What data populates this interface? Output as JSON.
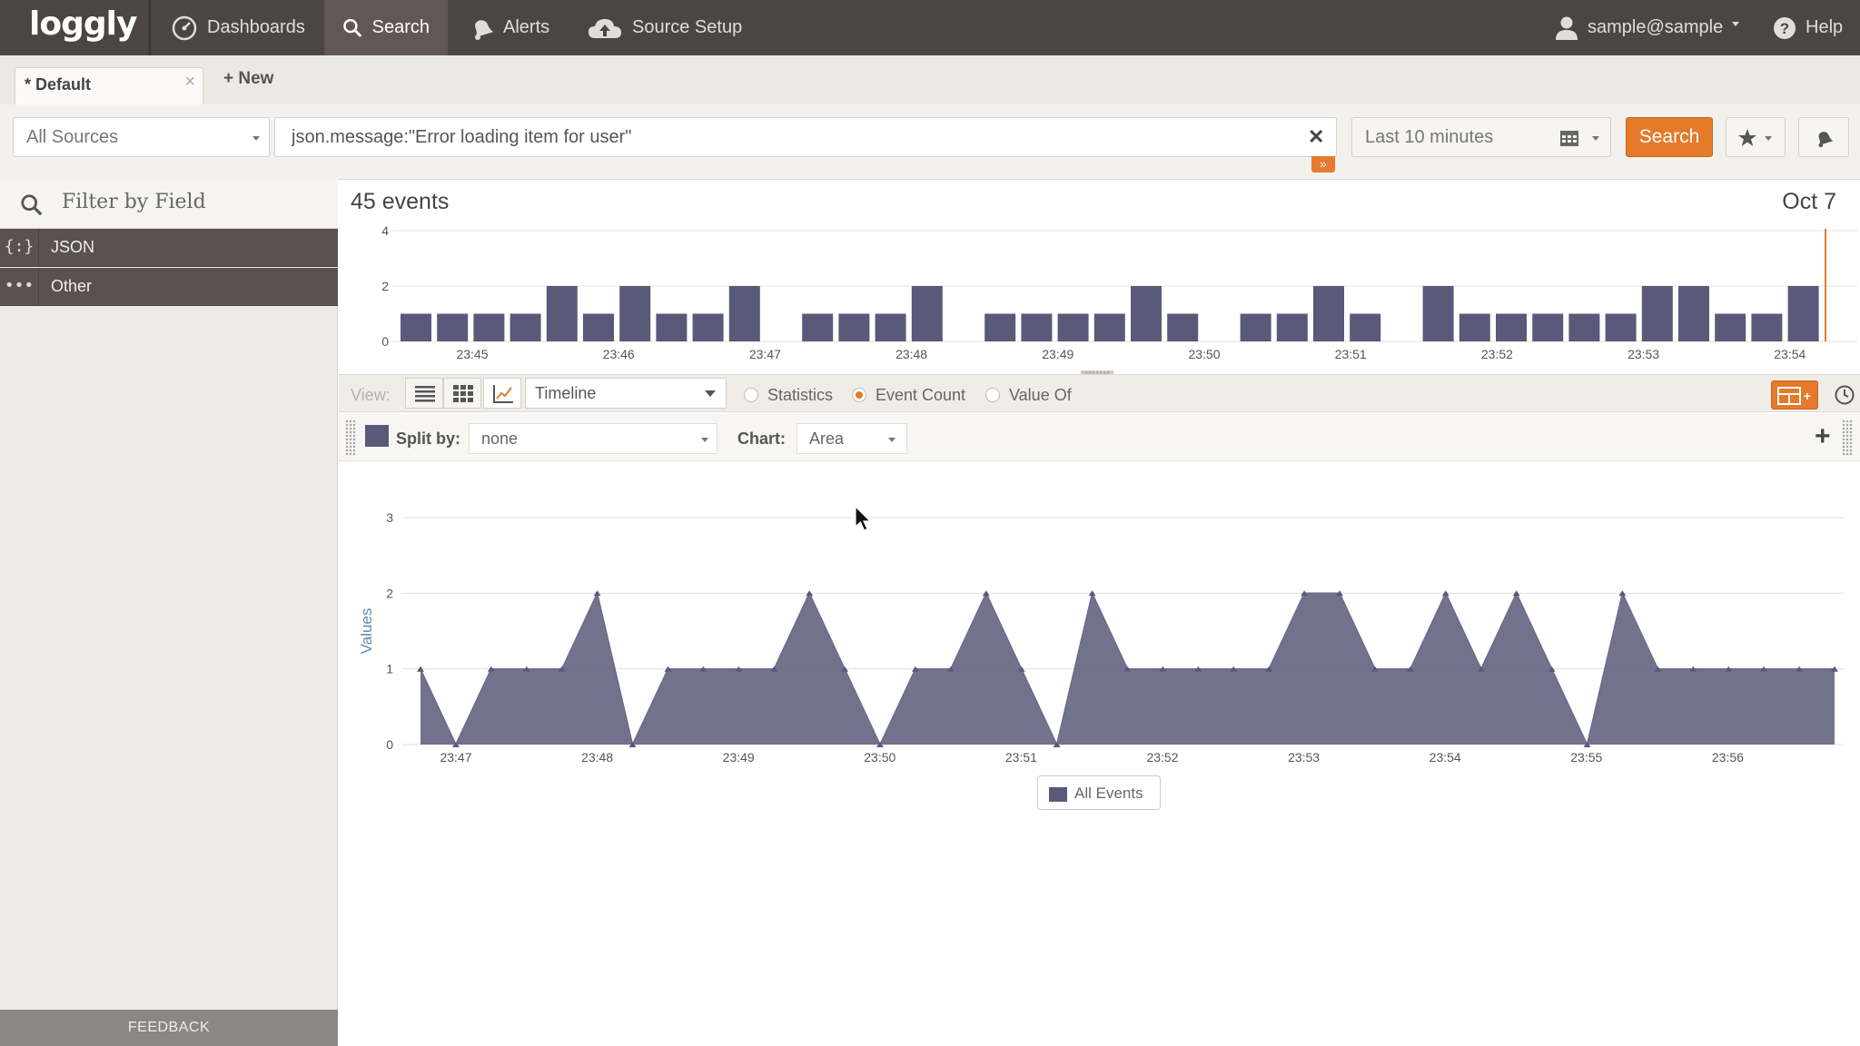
{
  "nav": {
    "logo": "loggly",
    "dashboards": "Dashboards",
    "search": "Search",
    "alerts": "Alerts",
    "source_setup": "Source Setup",
    "user": "sample@sample",
    "help": "Help"
  },
  "tabs": {
    "current": "* Default",
    "close": "×",
    "new": "+ New"
  },
  "search": {
    "source": "All Sources",
    "query": "json.message:\"Error loading item for user\"",
    "clear": "✕",
    "expand": "»",
    "time_range": "Last 10 minutes",
    "button": "Search"
  },
  "sidebar": {
    "filter_placeholder": "Filter by Field",
    "fields": [
      {
        "icon": "{:}",
        "label": "JSON"
      },
      {
        "icon": "•••",
        "label": "Other"
      }
    ],
    "feedback": "FEEDBACK"
  },
  "summary": {
    "events": "45 events",
    "date": "Oct 7"
  },
  "view": {
    "label": "View:",
    "mode": "Timeline",
    "options": [
      "Statistics",
      "Event Count",
      "Value Of"
    ],
    "selected": "Event Count"
  },
  "split": {
    "label": "Split by:",
    "value": "none",
    "chart_label": "Chart:",
    "chart_value": "Area"
  },
  "colors": {
    "accent": "#e57a2b",
    "bar": "#5a5979",
    "nav_bg": "#4d4542"
  },
  "chart_data": [
    {
      "type": "bar",
      "title": "",
      "x_ticks": [
        "23:45",
        "23:46",
        "23:47",
        "23:48",
        "23:49",
        "23:50",
        "23:51",
        "23:52",
        "23:53",
        "23:54"
      ],
      "y_ticks": [
        0,
        2,
        4
      ],
      "ylim": [
        0,
        4
      ],
      "values": [
        1,
        1,
        1,
        1,
        2,
        1,
        2,
        1,
        1,
        2,
        0,
        1,
        1,
        1,
        2,
        0,
        1,
        1,
        1,
        1,
        2,
        1,
        0,
        1,
        1,
        2,
        1,
        0,
        2,
        1,
        1,
        1,
        1,
        1,
        2,
        2,
        1,
        1,
        2
      ],
      "grid": true
    },
    {
      "type": "area",
      "title": "",
      "ylabel": "Values",
      "x_ticks": [
        "23:47",
        "23:48",
        "23:49",
        "23:50",
        "23:51",
        "23:52",
        "23:53",
        "23:54",
        "23:55",
        "23:56"
      ],
      "y_ticks": [
        0,
        1,
        2,
        3
      ],
      "ylim": [
        0,
        3
      ],
      "values": [
        1,
        0,
        1,
        1,
        1,
        2,
        0,
        1,
        1,
        1,
        1,
        2,
        1,
        0,
        1,
        1,
        2,
        1,
        0,
        2,
        1,
        1,
        1,
        1,
        1,
        2,
        2,
        1,
        1,
        2,
        1,
        2,
        1,
        0,
        2,
        1,
        1,
        1,
        1,
        1,
        1
      ],
      "legend": [
        "All Events"
      ],
      "legend_position": "bottom-center",
      "grid": true
    }
  ]
}
